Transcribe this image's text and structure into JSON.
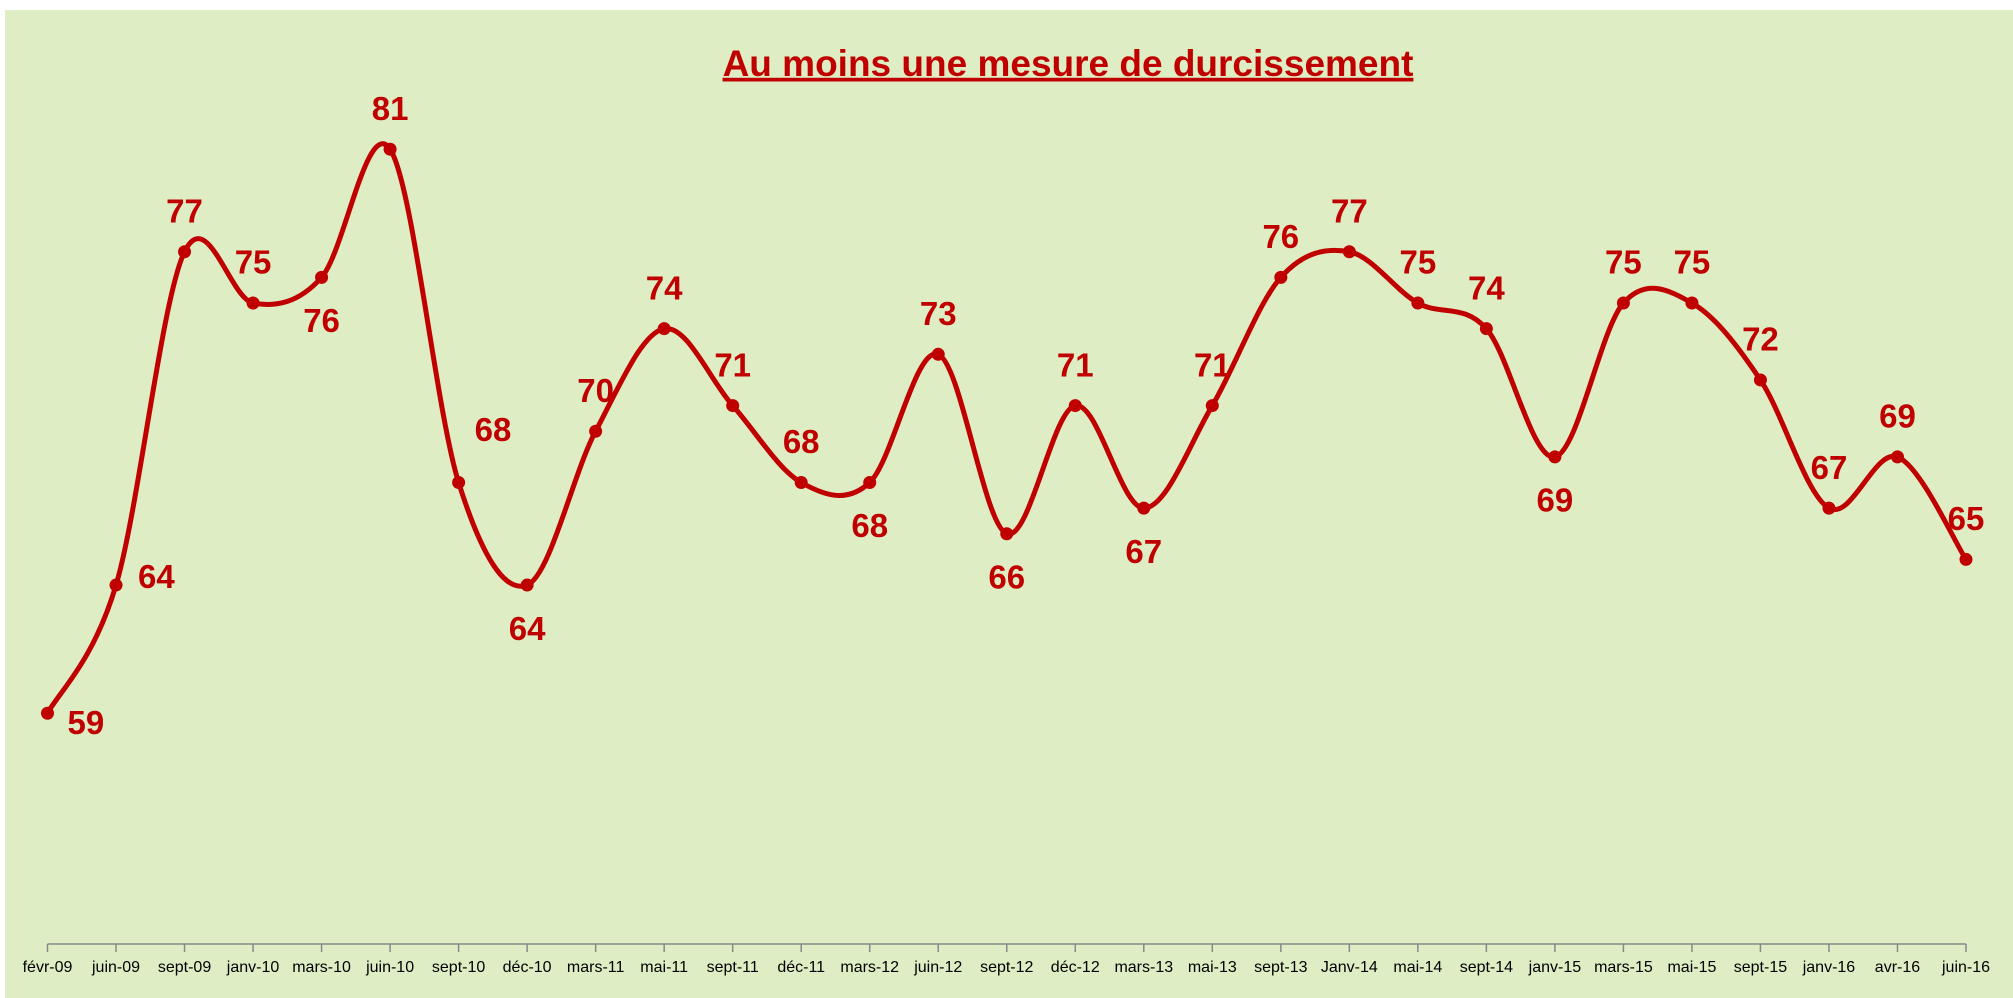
{
  "chart_data": {
    "type": "line",
    "title": "Au moins une mesure de durcissement",
    "categories": [
      "févr-09",
      "juin-09",
      "sept-09",
      "janv-10",
      "mars-10",
      "juin-10",
      "sept-10",
      "déc-10",
      "mars-11",
      "mai-11",
      "sept-11",
      "déc-11",
      "mars-12",
      "juin-12",
      "sept-12",
      "déc-12",
      "mars-13",
      "mai-13",
      "sept-13",
      "Janv-14",
      "mai-14",
      "sept-14",
      "janv-15",
      "mars-15",
      "mai-15",
      "sept-15",
      "janv-16",
      "avr-16",
      "juin-16"
    ],
    "series": [
      {
        "name": "Au moins une mesure de durcissement",
        "color": "#c00000",
        "values": [
          59,
          64,
          77,
          75,
          76,
          81,
          68,
          64,
          70,
          74,
          71,
          68,
          68,
          73,
          66,
          71,
          67,
          71,
          76,
          77,
          75,
          74,
          69,
          75,
          75,
          72,
          67,
          69,
          65
        ]
      }
    ],
    "ylim": [
      50,
      86
    ],
    "grid": false,
    "legend": false
  }
}
